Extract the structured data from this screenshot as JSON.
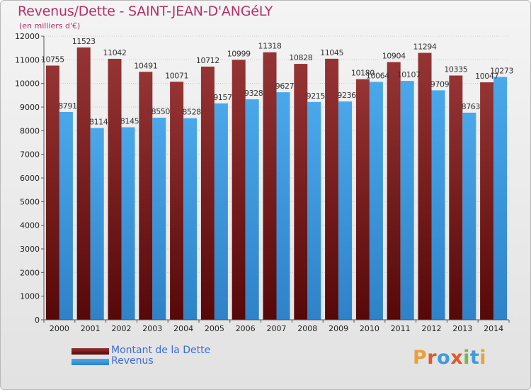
{
  "header": {
    "title": "Revenus/Dette - SAINT-JEAN-D'ANGéLY",
    "subtitle": "(en milliers d'€)"
  },
  "legend": [
    {
      "label": "Montant de la Dette",
      "color": "#7a1a1a"
    },
    {
      "label": "Revenus",
      "color": "#3e9be0"
    }
  ],
  "logo": {
    "text": "Proxiti",
    "colors": [
      "#e8a13a",
      "#e05a2c",
      "#3e9be0",
      "#e05a2c",
      "#7ab648",
      "#3e9be0",
      "#e8a13a"
    ]
  },
  "chart_data": {
    "type": "bar",
    "categories": [
      "2000",
      "2001",
      "2002",
      "2003",
      "2004",
      "2005",
      "2006",
      "2007",
      "2008",
      "2009",
      "2010",
      "2011",
      "2012",
      "2013",
      "2014"
    ],
    "series": [
      {
        "name": "Montant de la Dette",
        "color": "#7a1a1a",
        "values": [
          10755,
          11523,
          11042,
          10491,
          10071,
          10712,
          10999,
          11318,
          10828,
          11045,
          10180,
          10904,
          11294,
          10335,
          10047
        ]
      },
      {
        "name": "Revenus",
        "color": "#3e9be0",
        "values": [
          8791,
          8114,
          8145,
          8550,
          8528,
          9157,
          9328,
          9627,
          9215,
          9236,
          10064,
          10107,
          9709,
          8763,
          10273
        ]
      }
    ],
    "yticks": [
      0,
      1000,
      2000,
      3000,
      4000,
      5000,
      6000,
      7000,
      8000,
      9000,
      10000,
      11000,
      12000
    ],
    "ylim": [
      0,
      12000
    ],
    "grid": true
  }
}
